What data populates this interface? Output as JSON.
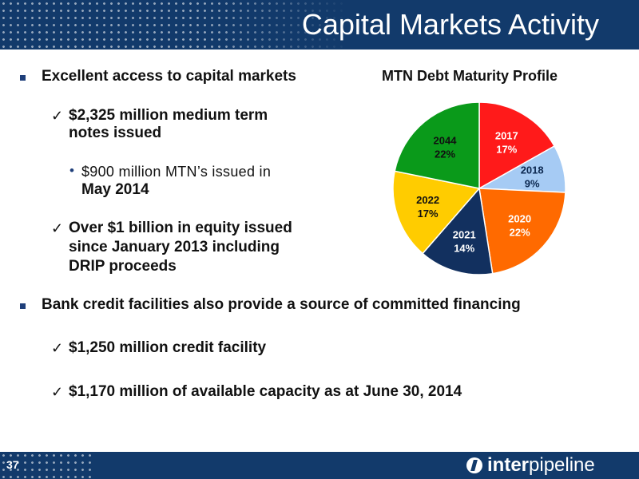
{
  "header": {
    "title": "Capital Markets Activity"
  },
  "bullets": {
    "b1": "Excellent access to capital markets",
    "b1_c1_line1": "$2,325 million medium term",
    "b1_c1_line2": "notes issued",
    "b1_c1_s1_line1": "$900 million MTN’s issued in",
    "b1_c1_s1_line2": "May 2014",
    "b1_c2_line1": "Over $1 billion in equity issued",
    "b1_c2_line2": "since January 2013 including",
    "b1_c2_line3": "DRIP proceeds",
    "b2": "Bank credit facilities also provide a source of committed financing",
    "b2_c1": "$1,250 million credit facility",
    "b2_c2": "$1,170 million of available capacity as at  June 30, 2014"
  },
  "symbols": {
    "check": "✓",
    "square": "▪",
    "dot": "•"
  },
  "footer": {
    "page": "37",
    "logo_bold": "inter",
    "logo_regular": "pipeline"
  },
  "chart_data": {
    "type": "pie",
    "title": "MTN Debt Maturity Profile",
    "slices": [
      {
        "label": "2017",
        "value": 17,
        "pct": "17%",
        "color": "#ff1a1a",
        "text_color": "#ffffff"
      },
      {
        "label": "2018",
        "value": 9,
        "pct": "9%",
        "color": "#a6cbf4",
        "text_color": "#0c2850"
      },
      {
        "label": "2020",
        "value": 22,
        "pct": "22%",
        "color": "#ff6a00",
        "text_color": "#ffffff"
      },
      {
        "label": "2021",
        "value": 14,
        "pct": "14%",
        "color": "#12305f",
        "text_color": "#ffffff"
      },
      {
        "label": "2022",
        "value": 17,
        "pct": "17%",
        "color": "#ffcc00",
        "text_color": "#111111"
      },
      {
        "label": "2044",
        "value": 22,
        "pct": "22%",
        "color": "#0a9a1a",
        "text_color": "#111111"
      }
    ]
  }
}
